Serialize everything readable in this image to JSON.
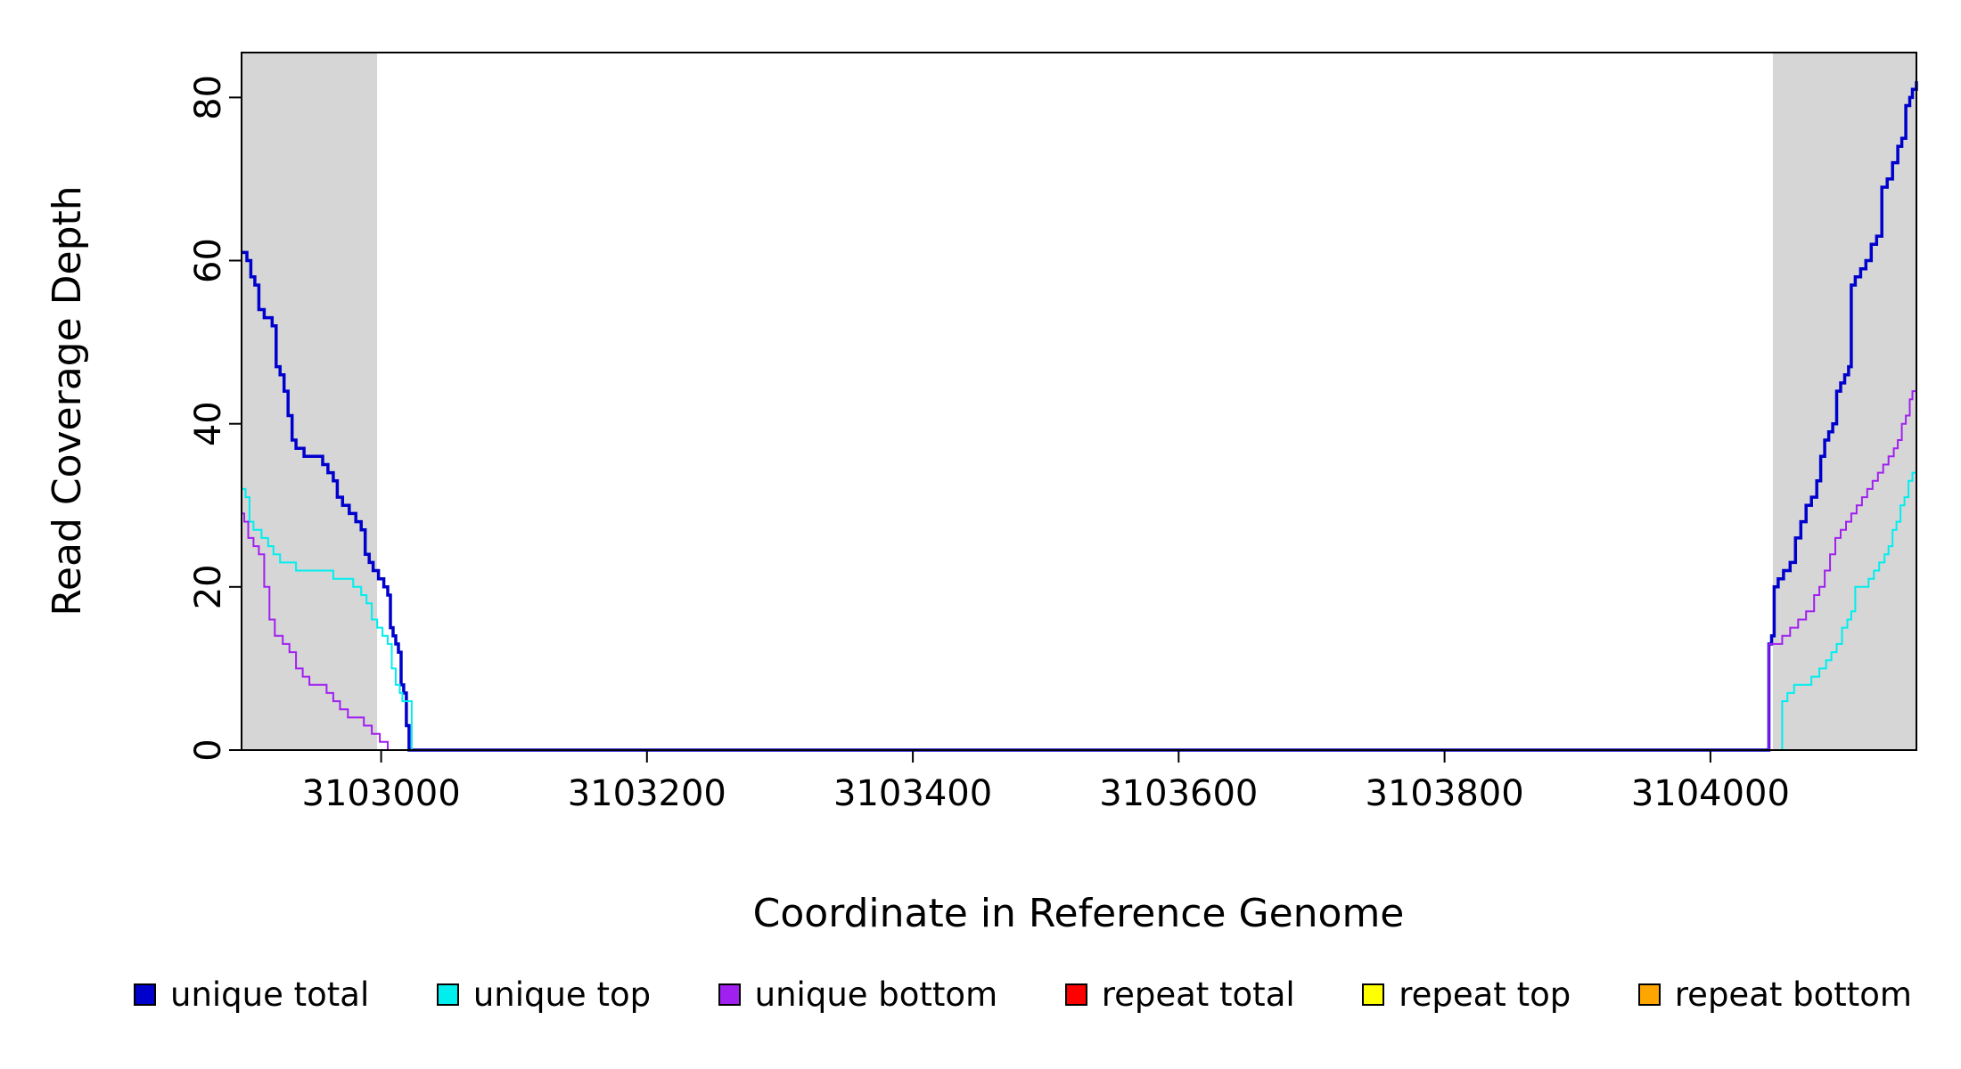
{
  "chart_data": {
    "type": "line",
    "title": "",
    "xlabel": "Coordinate in Reference Genome",
    "ylabel": "Read Coverage Depth",
    "xlim": [
      3102895,
      3104155
    ],
    "ylim": [
      0,
      85.5
    ],
    "x_ticks": [
      3103000,
      3103200,
      3103400,
      3103600,
      3103800,
      3104000
    ],
    "y_ticks": [
      0,
      20,
      40,
      60,
      80
    ],
    "grid": false,
    "legend_position": "bottom",
    "line_style": "step-after",
    "frame_color": "#000000",
    "shaded_regions": [
      {
        "x0": 3102895,
        "x1": 3102997,
        "color": "#D6D6D6"
      },
      {
        "x0": 3104047,
        "x1": 3104155,
        "color": "#D6D6D6"
      }
    ],
    "draw_order": [
      3,
      4,
      5,
      0,
      1,
      2
    ],
    "series": [
      {
        "name": "unique total",
        "color": "#0000CD",
        "width": 3.5,
        "points": [
          [
            3102895,
            61
          ],
          [
            3102899,
            60
          ],
          [
            3102902,
            58
          ],
          [
            3102905,
            57
          ],
          [
            3102908,
            54
          ],
          [
            3102912,
            53
          ],
          [
            3102918,
            52
          ],
          [
            3102921,
            47
          ],
          [
            3102924,
            46
          ],
          [
            3102927,
            44
          ],
          [
            3102930,
            41
          ],
          [
            3102933,
            38
          ],
          [
            3102936,
            37
          ],
          [
            3102942,
            36
          ],
          [
            3102952,
            36
          ],
          [
            3102956,
            35
          ],
          [
            3102960,
            34
          ],
          [
            3102964,
            33
          ],
          [
            3102967,
            31
          ],
          [
            3102971,
            30
          ],
          [
            3102976,
            29
          ],
          [
            3102981,
            28
          ],
          [
            3102985,
            27
          ],
          [
            3102988,
            24
          ],
          [
            3102991,
            23
          ],
          [
            3102994,
            22
          ],
          [
            3102998,
            21
          ],
          [
            3103002,
            20
          ],
          [
            3103005,
            19
          ],
          [
            3103007,
            15
          ],
          [
            3103009,
            14
          ],
          [
            3103011,
            13
          ],
          [
            3103013,
            12
          ],
          [
            3103015,
            8
          ],
          [
            3103017,
            7
          ],
          [
            3103019,
            3
          ],
          [
            3103021,
            0
          ],
          [
            3104043,
            0
          ],
          [
            3104044,
            13
          ],
          [
            3104046,
            14
          ],
          [
            3104048,
            20
          ],
          [
            3104051,
            21
          ],
          [
            3104055,
            22
          ],
          [
            3104060,
            23
          ],
          [
            3104064,
            26
          ],
          [
            3104068,
            28
          ],
          [
            3104072,
            30
          ],
          [
            3104076,
            31
          ],
          [
            3104080,
            33
          ],
          [
            3104083,
            36
          ],
          [
            3104086,
            38
          ],
          [
            3104089,
            39
          ],
          [
            3104092,
            40
          ],
          [
            3104095,
            44
          ],
          [
            3104098,
            45
          ],
          [
            3104101,
            46
          ],
          [
            3104104,
            47
          ],
          [
            3104106,
            57
          ],
          [
            3104109,
            58
          ],
          [
            3104113,
            59
          ],
          [
            3104117,
            60
          ],
          [
            3104121,
            62
          ],
          [
            3104125,
            63
          ],
          [
            3104129,
            69
          ],
          [
            3104133,
            70
          ],
          [
            3104137,
            72
          ],
          [
            3104141,
            74
          ],
          [
            3104144,
            75
          ],
          [
            3104147,
            79
          ],
          [
            3104150,
            80
          ],
          [
            3104152,
            81
          ],
          [
            3104155,
            82
          ]
        ]
      },
      {
        "name": "unique top",
        "color": "#00EEEE",
        "width": 2,
        "points": [
          [
            3102895,
            32
          ],
          [
            3102898,
            31
          ],
          [
            3102901,
            28
          ],
          [
            3102904,
            27
          ],
          [
            3102910,
            26
          ],
          [
            3102915,
            25
          ],
          [
            3102919,
            24
          ],
          [
            3102924,
            23
          ],
          [
            3102936,
            22
          ],
          [
            3102958,
            22
          ],
          [
            3102964,
            21
          ],
          [
            3102972,
            21
          ],
          [
            3102979,
            20
          ],
          [
            3102985,
            19
          ],
          [
            3102989,
            18
          ],
          [
            3102993,
            16
          ],
          [
            3102997,
            15
          ],
          [
            3103001,
            14
          ],
          [
            3103005,
            13
          ],
          [
            3103008,
            10
          ],
          [
            3103011,
            8
          ],
          [
            3103014,
            7
          ],
          [
            3103016,
            6
          ],
          [
            3103021,
            6
          ],
          [
            3103023,
            0
          ],
          [
            3104052,
            0
          ],
          [
            3104054,
            6
          ],
          [
            3104058,
            7
          ],
          [
            3104063,
            8
          ],
          [
            3104070,
            8
          ],
          [
            3104076,
            9
          ],
          [
            3104082,
            10
          ],
          [
            3104087,
            11
          ],
          [
            3104091,
            12
          ],
          [
            3104095,
            13
          ],
          [
            3104099,
            15
          ],
          [
            3104103,
            16
          ],
          [
            3104106,
            17
          ],
          [
            3104109,
            20
          ],
          [
            3104116,
            20
          ],
          [
            3104119,
            21
          ],
          [
            3104123,
            22
          ],
          [
            3104127,
            23
          ],
          [
            3104131,
            24
          ],
          [
            3104134,
            25
          ],
          [
            3104137,
            27
          ],
          [
            3104140,
            28
          ],
          [
            3104143,
            30
          ],
          [
            3104146,
            31
          ],
          [
            3104149,
            33
          ],
          [
            3104152,
            34
          ],
          [
            3104155,
            35
          ]
        ]
      },
      {
        "name": "unique bottom",
        "color": "#A020F0",
        "width": 2,
        "points": [
          [
            3102895,
            29
          ],
          [
            3102897,
            28
          ],
          [
            3102900,
            26
          ],
          [
            3102904,
            25
          ],
          [
            3102908,
            24
          ],
          [
            3102912,
            20
          ],
          [
            3102916,
            16
          ],
          [
            3102920,
            14
          ],
          [
            3102926,
            13
          ],
          [
            3102931,
            12
          ],
          [
            3102936,
            10
          ],
          [
            3102941,
            9
          ],
          [
            3102946,
            8
          ],
          [
            3102954,
            8
          ],
          [
            3102959,
            7
          ],
          [
            3102964,
            6
          ],
          [
            3102969,
            5
          ],
          [
            3102975,
            4
          ],
          [
            3102982,
            4
          ],
          [
            3102987,
            3
          ],
          [
            3102993,
            2
          ],
          [
            3102999,
            1
          ],
          [
            3103005,
            0
          ],
          [
            3104043,
            0
          ],
          [
            3104044,
            13
          ],
          [
            3104050,
            13
          ],
          [
            3104054,
            14
          ],
          [
            3104060,
            15
          ],
          [
            3104066,
            16
          ],
          [
            3104072,
            17
          ],
          [
            3104078,
            19
          ],
          [
            3104082,
            20
          ],
          [
            3104086,
            22
          ],
          [
            3104090,
            24
          ],
          [
            3104094,
            26
          ],
          [
            3104098,
            27
          ],
          [
            3104102,
            28
          ],
          [
            3104106,
            29
          ],
          [
            3104110,
            30
          ],
          [
            3104114,
            31
          ],
          [
            3104118,
            32
          ],
          [
            3104122,
            33
          ],
          [
            3104126,
            34
          ],
          [
            3104130,
            35
          ],
          [
            3104134,
            36
          ],
          [
            3104138,
            37
          ],
          [
            3104141,
            38
          ],
          [
            3104144,
            40
          ],
          [
            3104147,
            41
          ],
          [
            3104150,
            43
          ],
          [
            3104152,
            44
          ],
          [
            3104155,
            46
          ]
        ]
      },
      {
        "name": "repeat total",
        "color": "#FF0000",
        "width": 2,
        "points": [
          [
            3102895,
            0
          ],
          [
            3104155,
            0
          ]
        ]
      },
      {
        "name": "repeat top",
        "color": "#FFFF00",
        "width": 2,
        "points": [
          [
            3102895,
            0
          ],
          [
            3104155,
            0
          ]
        ]
      },
      {
        "name": "repeat bottom",
        "color": "#FFA500",
        "width": 2,
        "points": [
          [
            3102895,
            0
          ],
          [
            3104155,
            0
          ]
        ]
      }
    ]
  }
}
